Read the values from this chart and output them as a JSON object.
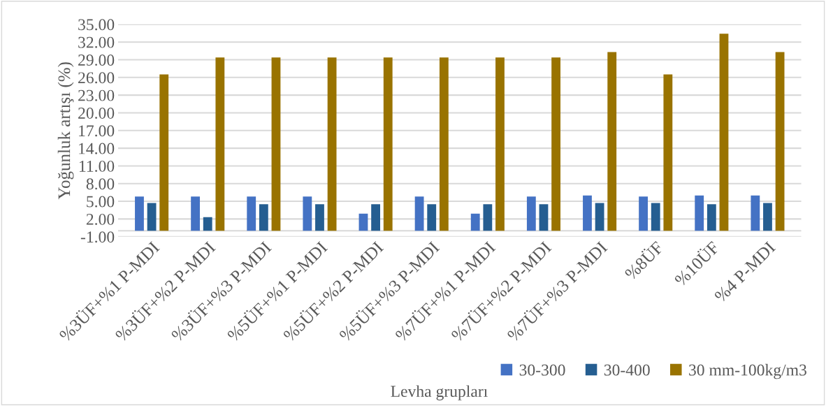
{
  "chart_data": {
    "type": "bar",
    "xlabel": "Levha grupları",
    "ylabel": "Yoğunluk artışı (%)",
    "categories": [
      "%3ÜF+%1 P-MDI",
      "%3ÜF+%2 P-MDI",
      "%3ÜF+%3 P-MDI",
      "%5ÜF+%1 P-MDI",
      "%5ÜF+%2 P-MDI",
      "%5ÜF+%3 P-MDI",
      "%7ÜF+%1 P-MDI",
      "%7ÜF+%2 P-MDI",
      "%7ÜF+%3 P-MDI",
      "%8ÜF",
      "%10ÜF",
      "%4 P-MDI"
    ],
    "series": [
      {
        "name": "30-300",
        "color": "#4472c4",
        "values": [
          5.8,
          5.8,
          5.8,
          5.8,
          2.9,
          5.8,
          2.9,
          5.8,
          6.0,
          5.8,
          6.0,
          6.0
        ]
      },
      {
        "name": "30-400",
        "color": "#255e91",
        "values": [
          4.7,
          2.3,
          4.5,
          4.5,
          4.5,
          4.5,
          4.5,
          4.5,
          4.7,
          4.7,
          4.5,
          4.7
        ]
      },
      {
        "name": "30 mm-100kg/m3",
        "color": "#997300",
        "values": [
          26.5,
          29.4,
          29.4,
          29.4,
          29.4,
          29.4,
          29.4,
          29.4,
          30.3,
          26.5,
          33.4,
          30.3
        ]
      }
    ],
    "ylim": [
      -1,
      35
    ],
    "yticks": [
      {
        "value": -1,
        "label": "-1.00"
      },
      {
        "value": 2,
        "label": "2.00"
      },
      {
        "value": 5,
        "label": "5.00"
      },
      {
        "value": 8,
        "label": "8.00"
      },
      {
        "value": 11,
        "label": "11.00"
      },
      {
        "value": 14,
        "label": "14.00"
      },
      {
        "value": 17,
        "label": "17.00"
      },
      {
        "value": 20,
        "label": "20.00"
      },
      {
        "value": 23,
        "label": "23.00"
      },
      {
        "value": 26,
        "label": "26.00"
      },
      {
        "value": 29,
        "label": "29.00"
      },
      {
        "value": 32,
        "label": "32.00"
      },
      {
        "value": 35,
        "label": "35.00"
      }
    ],
    "grid": "y",
    "legend": "bottom right"
  }
}
